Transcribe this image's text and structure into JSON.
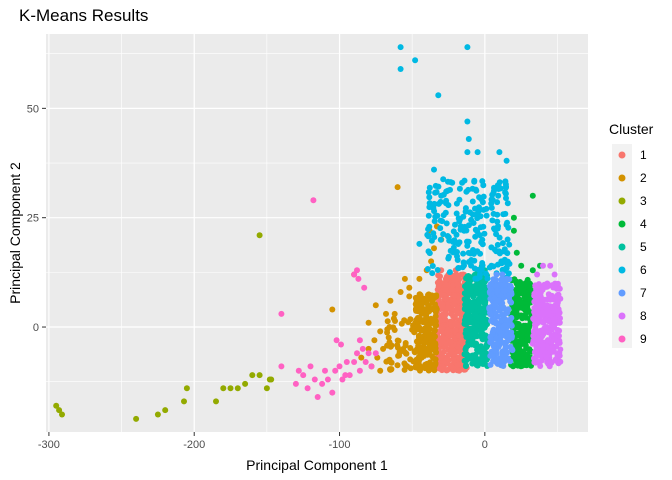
{
  "chart_data": {
    "type": "scatter",
    "title": "K-Means Results",
    "xlabel": "Principal Component 1",
    "ylabel": "Principal Component 2",
    "xlim": [
      -302,
      71
    ],
    "ylim": [
      -24,
      67
    ],
    "xticks": [
      -300,
      -200,
      -100,
      0
    ],
    "yticks": [
      0,
      25,
      50
    ],
    "grid": true,
    "legend": {
      "title": "Cluster",
      "placement": "right"
    },
    "colors": {
      "1": "#F8766D",
      "2": "#D39200",
      "3": "#93AA00",
      "4": "#00BA38",
      "5": "#00C19F",
      "6": "#00B9E3",
      "7": "#619CFF",
      "8": "#DB72FB",
      "9": "#FF61C3"
    },
    "series": [
      {
        "name": "1",
        "bands": [
          {
            "x": [
              -33,
              -12
            ],
            "y": [
              -10,
              12
            ],
            "n": 420
          }
        ],
        "points": [
          [
            -30,
            13
          ],
          [
            -25,
            12
          ],
          [
            -20,
            13
          ],
          [
            -15,
            12
          ]
        ]
      },
      {
        "name": "2",
        "bands": [
          {
            "x": [
              -48,
              -33
            ],
            "y": [
              -10,
              8
            ],
            "n": 200
          },
          {
            "x": [
              -68,
              -48
            ],
            "y": [
              -10,
              2
            ],
            "n": 55
          }
        ],
        "points": [
          [
            -85,
            -7
          ],
          [
            -80,
            -5
          ],
          [
            -78,
            -9
          ],
          [
            -76,
            -3
          ],
          [
            -74,
            -7
          ],
          [
            -72,
            -10
          ],
          [
            -70,
            -5
          ],
          [
            -72,
            -1
          ],
          [
            -68,
            3
          ],
          [
            -65,
            6
          ],
          [
            -62,
            3
          ],
          [
            -58,
            8
          ],
          [
            -55,
            11
          ],
          [
            -52,
            7
          ],
          [
            -45,
            11
          ],
          [
            -40,
            13
          ],
          [
            -37,
            15
          ],
          [
            -35,
            18
          ],
          [
            -38,
            22
          ],
          [
            -33,
            23
          ],
          [
            -30,
            20
          ],
          [
            -60,
            32
          ],
          [
            -90,
            12
          ],
          [
            -105,
            4
          ],
          [
            -52,
            9
          ],
          [
            -75,
            5
          ],
          [
            -80,
            1
          ]
        ]
      },
      {
        "name": "3",
        "points": [
          [
            -295,
            -18
          ],
          [
            -293,
            -19
          ],
          [
            -291,
            -20
          ],
          [
            -240,
            -21
          ],
          [
            -225,
            -20
          ],
          [
            -220,
            -19
          ],
          [
            -207,
            -17
          ],
          [
            -205,
            -14
          ],
          [
            -185,
            -17
          ],
          [
            -180,
            -14
          ],
          [
            -175,
            -14
          ],
          [
            -170,
            -14
          ],
          [
            -165,
            -13
          ],
          [
            -160,
            -11
          ],
          [
            -155,
            -11
          ],
          [
            -150,
            -14
          ],
          [
            -148,
            -12
          ],
          [
            -147,
            -12
          ],
          [
            -155,
            21
          ]
        ]
      },
      {
        "name": "4",
        "bands": [
          {
            "x": [
              18,
              32
            ],
            "y": [
              -9,
              11
            ],
            "n": 240
          }
        ],
        "points": [
          [
            20,
            25
          ],
          [
            20,
            22
          ],
          [
            33,
            30
          ],
          [
            25,
            14
          ],
          [
            33,
            13
          ],
          [
            38,
            14
          ],
          [
            22,
            17
          ]
        ]
      },
      {
        "name": "5",
        "bands": [
          {
            "x": [
              -14,
              2
            ],
            "y": [
              -9,
              12
            ],
            "n": 300
          }
        ],
        "points": [
          [
            -5,
            13
          ],
          [
            -2,
            14
          ],
          [
            0,
            13
          ]
        ]
      },
      {
        "name": "6",
        "bands": [
          {
            "x": [
              -40,
              17
            ],
            "y": [
              11,
              34
            ],
            "n": 230
          }
        ],
        "points": [
          [
            -58,
            64
          ],
          [
            -58,
            59
          ],
          [
            -48,
            61
          ],
          [
            -12,
            64
          ],
          [
            -32,
            53
          ],
          [
            -12,
            47
          ],
          [
            -11,
            43
          ],
          [
            -12,
            40
          ],
          [
            -5,
            40
          ],
          [
            15,
            38
          ],
          [
            10,
            40
          ],
          [
            -35,
            36
          ],
          [
            -30,
            30
          ],
          [
            -45,
            19
          ]
        ]
      },
      {
        "name": "7",
        "bands": [
          {
            "x": [
              3,
              19
            ],
            "y": [
              -9,
              11
            ],
            "n": 220
          }
        ],
        "points": [
          [
            8,
            12
          ],
          [
            12,
            12
          ],
          [
            15,
            11
          ]
        ]
      },
      {
        "name": "8",
        "bands": [
          {
            "x": [
              33,
              52
            ],
            "y": [
              -9,
              10
            ],
            "n": 260
          }
        ],
        "points": [
          [
            40,
            14
          ],
          [
            45,
            14
          ],
          [
            48,
            12
          ],
          [
            36,
            12
          ]
        ]
      },
      {
        "name": "9",
        "points": [
          [
            -118,
            29
          ],
          [
            -90,
            12
          ],
          [
            -88,
            13
          ],
          [
            -87,
            11
          ],
          [
            -83,
            9
          ],
          [
            -140,
            3
          ],
          [
            -140,
            -9
          ],
          [
            -130,
            -13
          ],
          [
            -128,
            -10
          ],
          [
            -125,
            -11
          ],
          [
            -122,
            -14
          ],
          [
            -120,
            -9
          ],
          [
            -117,
            -12
          ],
          [
            -115,
            -16
          ],
          [
            -112,
            -13
          ],
          [
            -110,
            -10
          ],
          [
            -108,
            -12
          ],
          [
            -105,
            -15
          ],
          [
            -103,
            -10
          ],
          [
            -100,
            -9
          ],
          [
            -98,
            -12
          ],
          [
            -96,
            -11
          ],
          [
            -95,
            -8
          ],
          [
            -93,
            -11
          ],
          [
            -90,
            -8
          ],
          [
            -88,
            -6
          ],
          [
            -86,
            -10
          ],
          [
            -84,
            -5
          ],
          [
            -82,
            -8
          ],
          [
            -80,
            -6
          ],
          [
            -78,
            -9
          ],
          [
            -102,
            -3
          ],
          [
            -99,
            -4
          ],
          [
            -75,
            -6
          ],
          [
            -86,
            -3
          ]
        ]
      }
    ]
  }
}
